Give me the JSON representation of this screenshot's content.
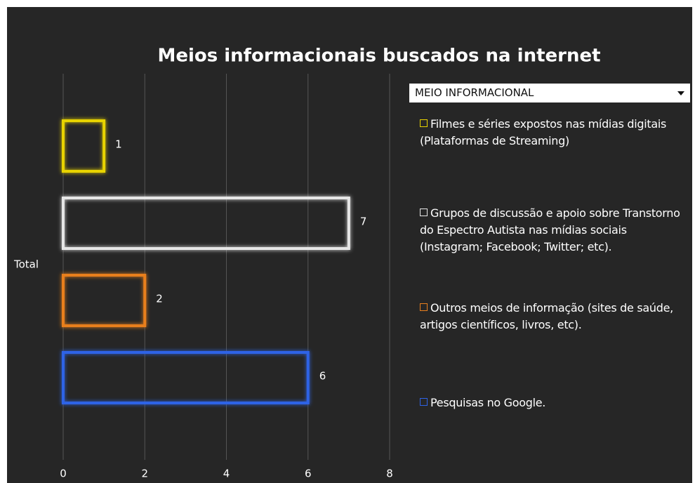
{
  "chart_data": {
    "type": "bar",
    "orientation": "horizontal",
    "title": "Meios informacionais buscados na internet",
    "categories": [
      "Total"
    ],
    "legend_title": "MEIO INFORMACIONAL",
    "series": [
      {
        "name": "Filmes e séries expostos nas mídias digitais (Plataformas de Streaming)",
        "color": "#e8d300",
        "values": [
          1
        ]
      },
      {
        "name": "Grupos de discussão e apoio sobre Transtorno do Espectro Autista nas mídias sociais (Instagram; Facebook; Twitter; etc).",
        "color": "#e6e6e6",
        "values": [
          7
        ]
      },
      {
        "name": "Outros meios de informação (sites de saúde, artigos científicos, livros, etc).",
        "color": "#e87f1e",
        "values": [
          2
        ]
      },
      {
        "name": "Pesquisas no Google.",
        "color": "#2f63e6",
        "values": [
          6
        ]
      }
    ],
    "xlim": [
      0,
      8
    ],
    "xticks": [
      0,
      2,
      4,
      6,
      8
    ],
    "grid": true,
    "legend": "right"
  }
}
